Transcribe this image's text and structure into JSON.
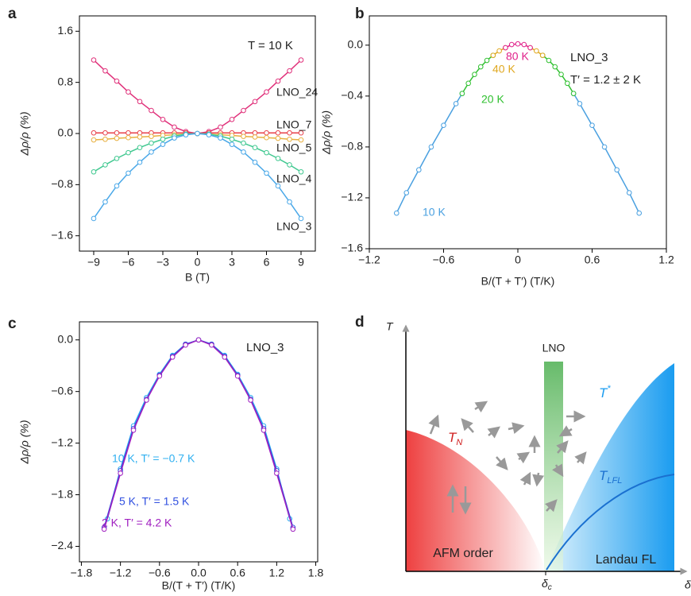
{
  "chart_data": [
    {
      "type": "line",
      "panel_label": "a",
      "x_label": "B (T)",
      "y_label": "Δρ/ρ (%)",
      "annotations": [
        "T = 10 K"
      ],
      "x": [
        -9,
        -8,
        -7,
        -6,
        -5,
        -4,
        -3,
        -2,
        -1,
        0,
        1,
        2,
        3,
        4,
        5,
        6,
        7,
        8,
        9
      ],
      "series": [
        {
          "name": "LNO_24",
          "color": "#e0307a",
          "values": [
            1.15,
            0.98,
            0.82,
            0.65,
            0.5,
            0.36,
            0.22,
            0.1,
            0.03,
            0,
            0.03,
            0.1,
            0.22,
            0.36,
            0.5,
            0.65,
            0.82,
            0.98,
            1.15
          ]
        },
        {
          "name": "LNO_7",
          "color": "#e8404a",
          "values": [
            0.01,
            0.01,
            0.01,
            0.01,
            0.01,
            0.01,
            0.01,
            0.01,
            0.01,
            0,
            0.01,
            0.01,
            0.01,
            0.01,
            0.01,
            0.01,
            0.01,
            0.01,
            0.01
          ]
        },
        {
          "name": "LNO_5",
          "color": "#e8b040",
          "values": [
            -0.1,
            -0.09,
            -0.075,
            -0.065,
            -0.055,
            -0.045,
            -0.03,
            -0.02,
            -0.01,
            0,
            -0.01,
            -0.02,
            -0.03,
            -0.045,
            -0.055,
            -0.065,
            -0.075,
            -0.09,
            -0.1
          ]
        },
        {
          "name": "LNO_4",
          "color": "#40c890",
          "values": [
            -0.6,
            -0.49,
            -0.39,
            -0.3,
            -0.22,
            -0.15,
            -0.09,
            -0.04,
            -0.01,
            0,
            -0.01,
            -0.04,
            -0.09,
            -0.15,
            -0.22,
            -0.3,
            -0.39,
            -0.49,
            -0.6
          ]
        },
        {
          "name": "LNO_3",
          "color": "#4aa8e8",
          "values": [
            -1.33,
            -1.07,
            -0.82,
            -0.62,
            -0.45,
            -0.29,
            -0.17,
            -0.07,
            -0.02,
            0,
            -0.02,
            -0.07,
            -0.17,
            -0.29,
            -0.45,
            -0.62,
            -0.82,
            -1.07,
            -1.33
          ]
        }
      ],
      "xlim": [
        -10.24,
        10.24
      ],
      "ylim": [
        -1.84,
        1.84
      ],
      "xticks": [
        {
          "value": -9,
          "label": "−9"
        },
        {
          "value": -6,
          "label": "−6"
        },
        {
          "value": -3,
          "label": "−3"
        },
        0,
        3,
        6,
        9
      ],
      "yticks": [
        1.6,
        0.8,
        {
          "value": 0,
          "label": "0.0"
        },
        {
          "value": -0.8,
          "label": "−0.8"
        },
        {
          "value": -1.6,
          "label": "−1.6"
        }
      ]
    },
    {
      "type": "line",
      "panel_label": "b",
      "x_label": "B/(T + T′) (T/K)",
      "y_label": "Δρ/ρ (%)",
      "annotations": [
        "LNO_3",
        "T′ = 1.2 ± 2 K"
      ],
      "series": [
        {
          "name": "10 K",
          "color": "#4aa0e0",
          "x": [
            -0.98,
            -0.9,
            -0.8,
            -0.7,
            -0.6,
            -0.5,
            -0.45,
            0,
            0.45,
            0.5,
            0.6,
            0.7,
            0.8,
            0.9,
            0.98
          ],
          "values": [
            -1.32,
            -1.16,
            -0.98,
            -0.8,
            -0.63,
            -0.46,
            -0.38,
            null,
            -0.38,
            -0.46,
            -0.63,
            -0.8,
            -0.98,
            -1.16,
            -1.32
          ]
        },
        {
          "name": "20 K",
          "color": "#30c030",
          "x": [
            -0.45,
            -0.4,
            -0.35,
            -0.3,
            -0.25,
            -0.2,
            0,
            0.2,
            0.25,
            0.3,
            0.35,
            0.4,
            0.45
          ],
          "values": [
            -0.38,
            -0.3,
            -0.23,
            -0.17,
            -0.12,
            -0.08,
            null,
            -0.08,
            -0.12,
            -0.17,
            -0.23,
            -0.3,
            -0.38
          ]
        },
        {
          "name": "40 K",
          "color": "#e0a820",
          "x": [
            -0.2,
            -0.15,
            -0.1,
            0,
            0.1,
            0.15,
            0.2
          ],
          "values": [
            -0.08,
            -0.045,
            -0.02,
            null,
            -0.02,
            -0.045,
            -0.08
          ]
        },
        {
          "name": "80 K",
          "color": "#e0208a",
          "x": [
            -0.1,
            -0.05,
            0,
            0.05,
            0.1
          ],
          "values": [
            -0.02,
            0.005,
            0.01,
            0.005,
            -0.02
          ]
        }
      ],
      "xlim": [
        -1.2,
        1.2
      ],
      "ylim": [
        -1.6,
        0.23
      ],
      "xticks": [
        {
          "value": -1.2,
          "label": "−1.2"
        },
        {
          "value": -0.6,
          "label": "−0.6"
        },
        0,
        0.6,
        1.2
      ],
      "yticks": [
        {
          "value": 0,
          "label": "0.0"
        },
        {
          "value": -0.4,
          "label": "−0.4"
        },
        {
          "value": -0.8,
          "label": "−0.8"
        },
        {
          "value": -1.2,
          "label": "−1.2"
        },
        {
          "value": -1.6,
          "label": "−1.6"
        }
      ]
    },
    {
      "type": "line",
      "panel_label": "c",
      "x_label": "B/(T + T′) (T/K)",
      "y_label": "Δρ/ρ (%)",
      "annotations": [
        "LNO_3"
      ],
      "series": [
        {
          "name": "10 K, T′ = −0.7 K",
          "color": "#30b0f0",
          "x": [
            -1.4,
            -1.2,
            -1,
            -0.8,
            -0.6,
            -0.4,
            -0.2,
            0,
            0.2,
            0.4,
            0.6,
            0.8,
            1,
            1.2,
            1.4
          ],
          "values": [
            -2.08,
            -1.5,
            -1.0,
            -0.67,
            -0.4,
            -0.18,
            -0.05,
            0,
            -0.05,
            -0.18,
            -0.4,
            -0.67,
            -1.0,
            -1.5,
            -2.08
          ]
        },
        {
          "name": "5 K, T′ = 1.5 K",
          "color": "#3050e0",
          "x": [
            -1.45,
            -1.2,
            -1,
            -0.8,
            -0.6,
            -0.4,
            -0.2,
            0,
            0.2,
            0.4,
            0.6,
            0.8,
            1,
            1.2,
            1.45
          ],
          "values": [
            -2.18,
            -1.52,
            -1.03,
            -0.69,
            -0.41,
            -0.19,
            -0.05,
            0,
            -0.05,
            -0.19,
            -0.41,
            -0.69,
            -1.03,
            -1.52,
            -2.18
          ]
        },
        {
          "name": "2 K, T′ = 4.2 K",
          "color": "#a020c0",
          "x": [
            -1.45,
            -1.2,
            -1,
            -0.8,
            -0.6,
            -0.4,
            -0.2,
            0,
            0.2,
            0.4,
            0.6,
            0.8,
            1,
            1.2,
            1.45
          ],
          "values": [
            -2.2,
            -1.55,
            -1.05,
            -0.7,
            -0.42,
            -0.2,
            -0.06,
            0,
            -0.06,
            -0.2,
            -0.42,
            -0.7,
            -1.05,
            -1.55,
            -2.2
          ]
        }
      ],
      "xlim": [
        -1.83,
        1.83
      ],
      "ylim": [
        -2.58,
        0.21
      ],
      "xticks": [
        {
          "value": -1.8,
          "label": "−1.8"
        },
        {
          "value": -1.2,
          "label": "−1.2"
        },
        {
          "value": -0.6,
          "label": "−0.6"
        },
        {
          "value": 0,
          "label": "0.0"
        },
        0.6,
        1.2,
        1.8
      ],
      "yticks": [
        {
          "value": 0,
          "label": "0.0"
        },
        {
          "value": -0.6,
          "label": "−0.6"
        },
        {
          "value": -1.2,
          "label": "−1.2"
        },
        {
          "value": -1.8,
          "label": "−1.8"
        },
        {
          "value": -2.4,
          "label": "−2.4"
        }
      ]
    }
  ],
  "diagram": {
    "panel_label": "d",
    "y_axis": "T",
    "x_axis": "δ",
    "x_marker": {
      "text": "δ",
      "sub": "c"
    },
    "bar_label": "LNO",
    "curves": [
      {
        "text": "T",
        "sup": "*"
      },
      {
        "text": "T",
        "sub": "N"
      },
      {
        "text": "T",
        "sub": "LFL"
      }
    ],
    "regions": [
      "AFM order",
      "Landau FL"
    ]
  }
}
